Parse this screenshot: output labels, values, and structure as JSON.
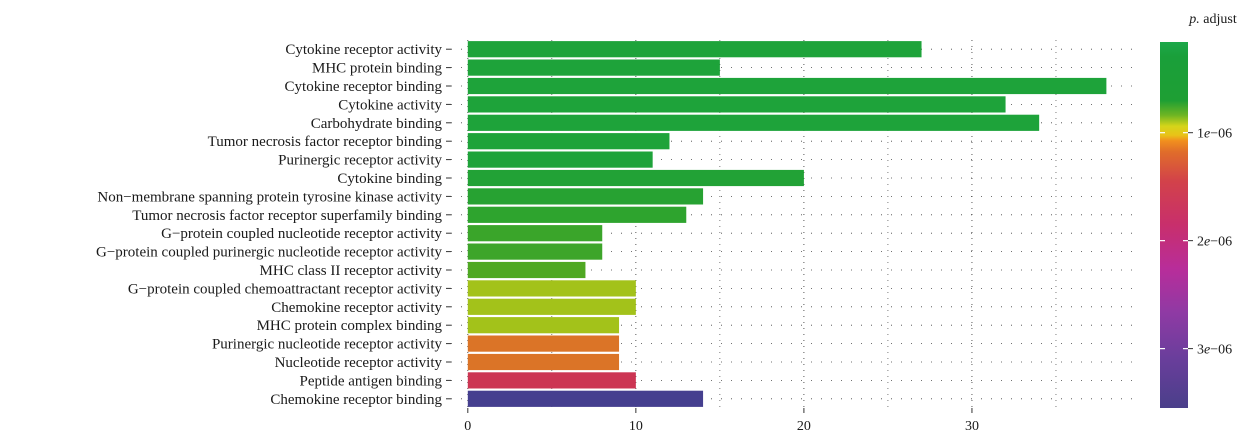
{
  "chart_data": {
    "type": "bar",
    "orientation": "horizontal",
    "categories": [
      "Cytokine receptor activity",
      "MHC protein binding",
      "Cytokine receptor binding",
      "Cytokine activity",
      "Carbohydrate binding",
      "Tumor necrosis factor receptor binding",
      "Purinergic receptor activity",
      "Cytokine binding",
      "Non−membrane spanning protein tyrosine kinase activity",
      "Tumor necrosis factor receptor superfamily binding",
      "G−protein coupled nucleotide receptor activity",
      "G−protein coupled purinergic nucleotide receptor activity",
      "MHC class II receptor activity",
      "G−protein coupled chemoattractant receptor activity",
      "Chemokine receptor activity",
      "MHC protein complex binding",
      "Purinergic nucleotide receptor activity",
      "Nucleotide receptor activity",
      "Peptide antigen binding",
      "Chemokine receptor binding"
    ],
    "values": [
      27,
      15,
      38,
      32,
      34,
      12,
      11,
      20,
      14,
      13,
      8,
      8,
      7,
      10,
      10,
      9,
      9,
      9,
      10,
      14
    ],
    "bar_colors": [
      "#1ea33a",
      "#1ea33a",
      "#1ea33a",
      "#1ea33a",
      "#1ea33a",
      "#1ea33a",
      "#1ea33a",
      "#22a236",
      "#27a232",
      "#2ea42e",
      "#3aa52a",
      "#3da52a",
      "#4fa823",
      "#a3c21a",
      "#a3c21a",
      "#a3c21a",
      "#db7427",
      "#db7427",
      "#cc3553",
      "#453f8f"
    ],
    "xlim": [
      -1,
      40
    ],
    "x_ticks": [
      0,
      10,
      20,
      30
    ],
    "grid": "dotted",
    "legend": {
      "title_italic": "p.",
      "title_rest": " adjust",
      "ticks": [
        "1e−06",
        "2e−06",
        "3e−06"
      ],
      "tick_values": [
        1e-06,
        2e-06,
        3e-06
      ],
      "range": [
        1.6e-07,
        3.55e-06
      ],
      "placement": "right",
      "gradient": [
        [
          0.0,
          "#1ca84a"
        ],
        [
          0.04,
          "#1a9f3a"
        ],
        [
          0.16,
          "#1e9f34"
        ],
        [
          0.2,
          "#6eb523"
        ],
        [
          0.23,
          "#d5d51a"
        ],
        [
          0.255,
          "#e9c218"
        ],
        [
          0.27,
          "#f18f1e"
        ],
        [
          0.3,
          "#e06d2a"
        ],
        [
          0.38,
          "#d2424a"
        ],
        [
          0.5,
          "#c82f6c"
        ],
        [
          0.62,
          "#b82d9a"
        ],
        [
          0.74,
          "#8f3aa4"
        ],
        [
          0.86,
          "#6b3e9c"
        ],
        [
          1.0,
          "#4a3f8a"
        ]
      ]
    }
  }
}
